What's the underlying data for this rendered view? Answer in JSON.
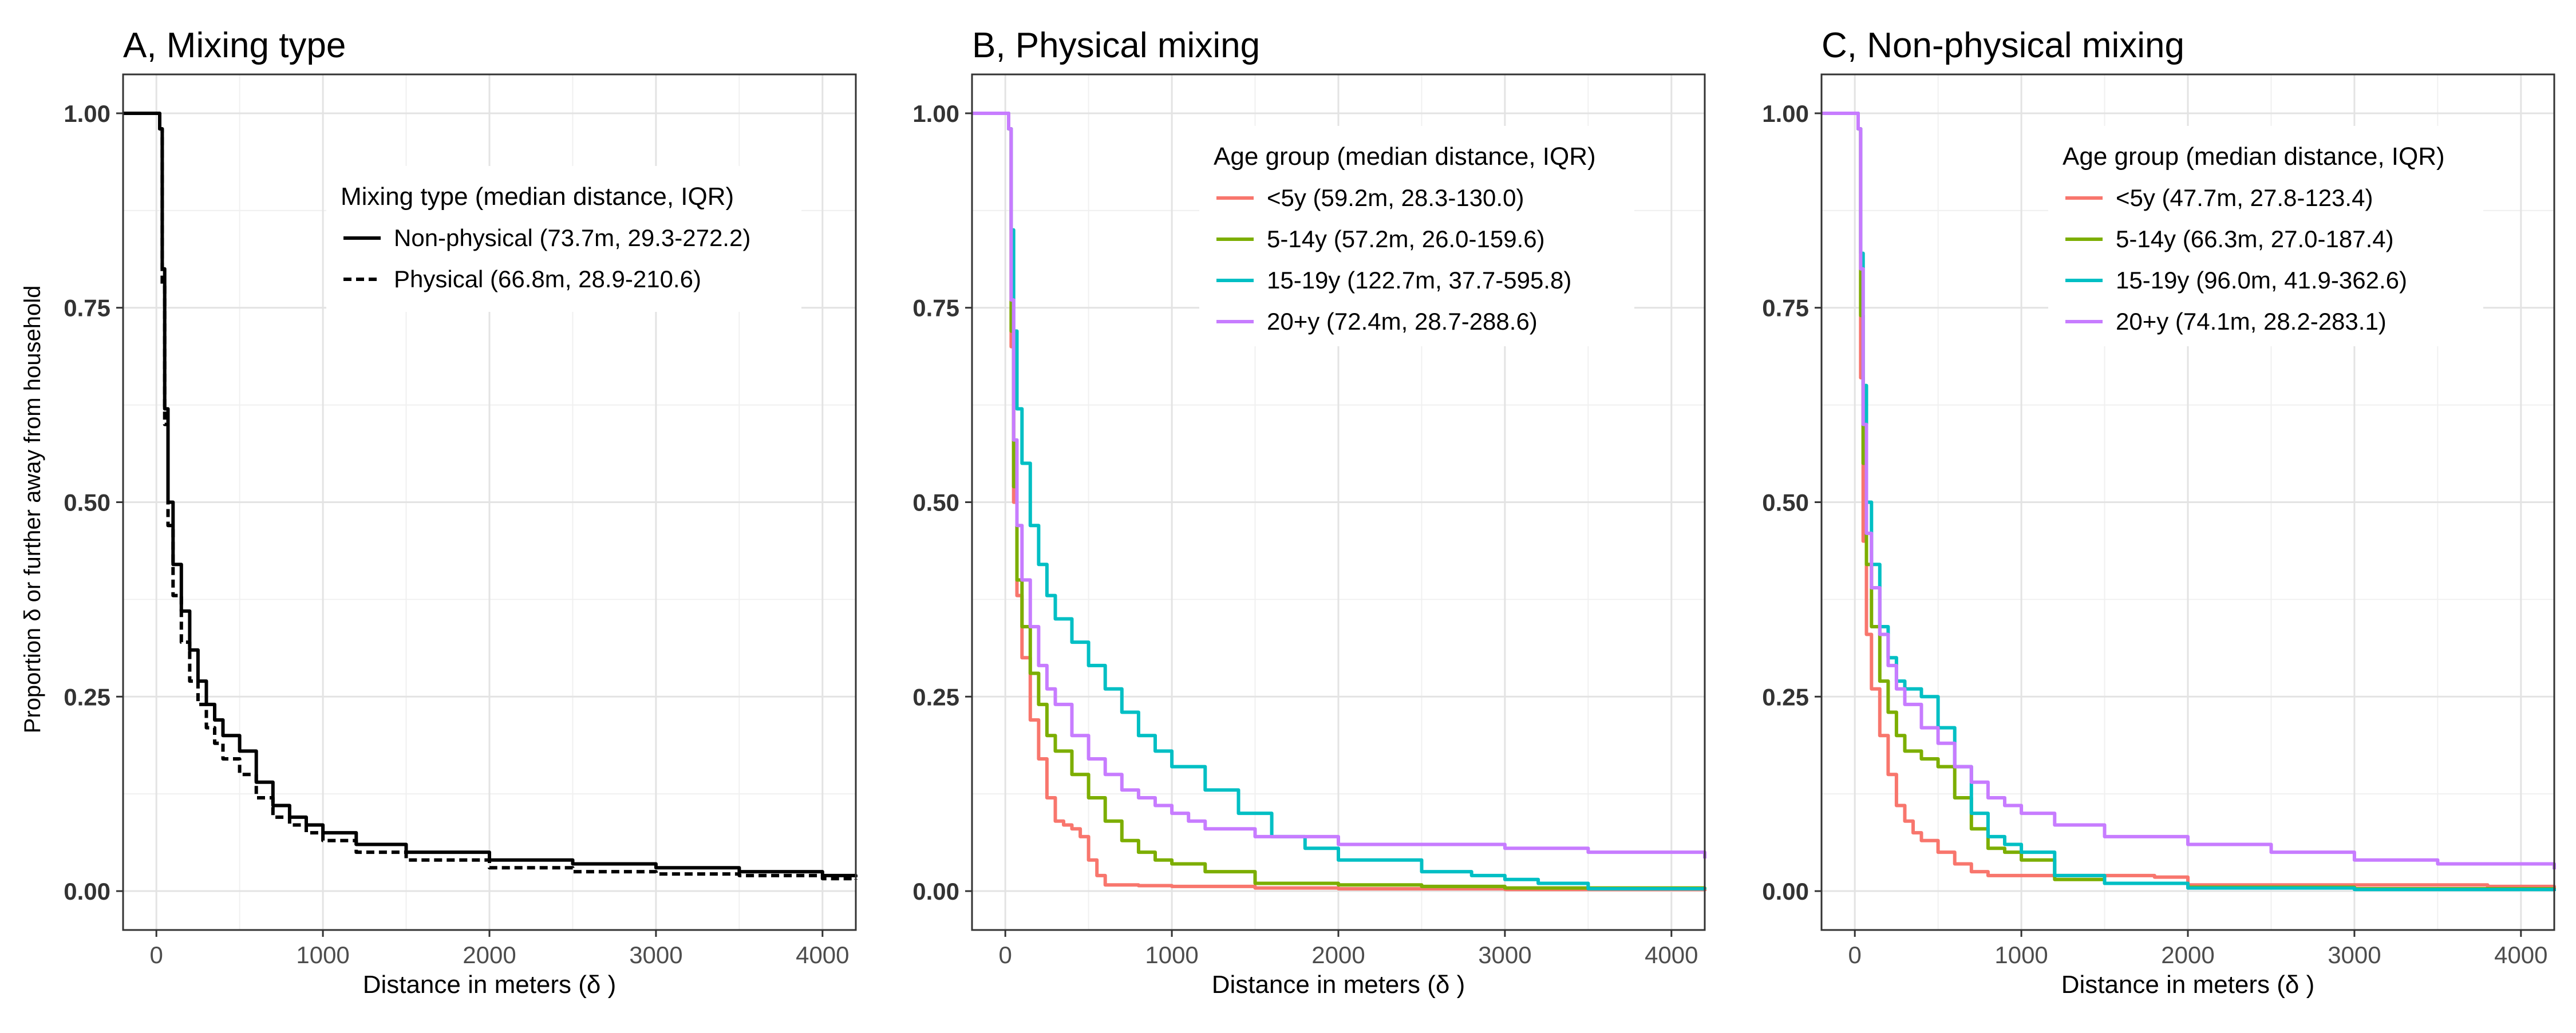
{
  "figure": {
    "ylabel": "Proportion δ  or further away from household"
  },
  "chart_data": [
    {
      "type": "line",
      "title": "A, Mixing type",
      "xlabel": "Distance in meters (δ )",
      "ylabel": "Proportion δ  or further away from household",
      "xlim": [
        -200,
        4200
      ],
      "ylim": [
        -0.05,
        1.05
      ],
      "x_ticks": [
        0,
        1000,
        2000,
        3000,
        4000
      ],
      "y_ticks": [
        0.0,
        0.25,
        0.5,
        0.75,
        1.0
      ],
      "y_tick_labels": [
        "0.00",
        "0.25",
        "0.50",
        "0.75",
        "1.00"
      ],
      "grid": true,
      "legend": {
        "title": "Mixing type (median distance, IQR)",
        "position": "top-right"
      },
      "series": [
        {
          "name": "Non-physical (73.7m, 29.3-272.2)",
          "color": "#000000",
          "dash": "solid",
          "x": [
            -200,
            0,
            20,
            35,
            50,
            70,
            100,
            150,
            200,
            250,
            300,
            350,
            400,
            500,
            600,
            700,
            800,
            900,
            1000,
            1200,
            1500,
            2000,
            2500,
            3000,
            3500,
            4000,
            4200
          ],
          "y": [
            1.0,
            1.0,
            0.98,
            0.8,
            0.62,
            0.5,
            0.42,
            0.36,
            0.31,
            0.27,
            0.24,
            0.22,
            0.2,
            0.18,
            0.14,
            0.11,
            0.095,
            0.085,
            0.075,
            0.06,
            0.05,
            0.04,
            0.035,
            0.03,
            0.025,
            0.02,
            0.018
          ]
        },
        {
          "name": "Physical (66.8m, 28.9-210.6)",
          "color": "#000000",
          "dash": "dashed",
          "x": [
            -200,
            0,
            20,
            35,
            50,
            70,
            100,
            150,
            200,
            250,
            300,
            350,
            400,
            500,
            600,
            700,
            800,
            900,
            1000,
            1200,
            1500,
            2000,
            2500,
            3000,
            3500,
            4000,
            4200
          ],
          "y": [
            1.0,
            1.0,
            0.98,
            0.78,
            0.6,
            0.47,
            0.38,
            0.32,
            0.27,
            0.24,
            0.21,
            0.19,
            0.17,
            0.15,
            0.12,
            0.095,
            0.085,
            0.075,
            0.065,
            0.05,
            0.04,
            0.03,
            0.025,
            0.022,
            0.02,
            0.016,
            0.015
          ]
        }
      ]
    },
    {
      "type": "line",
      "title": "B, Physical mixing",
      "xlabel": "Distance in meters (δ )",
      "xlim": [
        -200,
        4200
      ],
      "ylim": [
        -0.05,
        1.05
      ],
      "x_ticks": [
        0,
        1000,
        2000,
        3000,
        4000
      ],
      "y_ticks": [
        0.0,
        0.25,
        0.5,
        0.75,
        1.0
      ],
      "y_tick_labels": [
        "0.00",
        "0.25",
        "0.50",
        "0.75",
        "1.00"
      ],
      "grid": true,
      "legend": {
        "title": "Age group (median distance, IQR)",
        "position": "top-right"
      },
      "series": [
        {
          "name": "<5y (59.2m, 28.3-130.0)",
          "color": "#F8766D",
          "x": [
            -200,
            0,
            20,
            35,
            50,
            70,
            100,
            150,
            200,
            250,
            300,
            350,
            400,
            450,
            500,
            550,
            600,
            700,
            800,
            1000,
            1500,
            2000,
            3000,
            4200
          ],
          "y": [
            1.0,
            1.0,
            0.98,
            0.7,
            0.5,
            0.38,
            0.3,
            0.22,
            0.17,
            0.12,
            0.09,
            0.085,
            0.08,
            0.07,
            0.04,
            0.02,
            0.008,
            0.008,
            0.007,
            0.006,
            0.004,
            0.003,
            0.002,
            0.0
          ]
        },
        {
          "name": "5-14y (57.2m, 26.0-159.6)",
          "color": "#7CAE00",
          "x": [
            -200,
            0,
            20,
            35,
            50,
            70,
            100,
            150,
            200,
            250,
            300,
            400,
            500,
            600,
            700,
            800,
            900,
            1000,
            1200,
            1500,
            2000,
            2500,
            3000,
            4200
          ],
          "y": [
            1.0,
            1.0,
            0.98,
            0.72,
            0.52,
            0.4,
            0.34,
            0.28,
            0.24,
            0.2,
            0.18,
            0.15,
            0.12,
            0.09,
            0.065,
            0.05,
            0.04,
            0.035,
            0.025,
            0.01,
            0.008,
            0.006,
            0.004,
            0.002
          ]
        },
        {
          "name": "15-19y (122.7m, 37.7-595.8)",
          "color": "#00BFC4",
          "x": [
            -200,
            0,
            20,
            35,
            50,
            70,
            100,
            150,
            200,
            250,
            300,
            400,
            500,
            600,
            700,
            800,
            900,
            1000,
            1200,
            1400,
            1600,
            1800,
            2000,
            2500,
            2800,
            3000,
            3200,
            3500,
            4200
          ],
          "y": [
            1.0,
            1.0,
            0.98,
            0.85,
            0.72,
            0.62,
            0.55,
            0.47,
            0.42,
            0.38,
            0.35,
            0.32,
            0.29,
            0.26,
            0.23,
            0.2,
            0.18,
            0.16,
            0.13,
            0.1,
            0.07,
            0.055,
            0.04,
            0.025,
            0.02,
            0.015,
            0.01,
            0.003,
            0.002
          ]
        },
        {
          "name": "20+y (72.4m, 28.7-288.6)",
          "color": "#C77CFF",
          "x": [
            -200,
            0,
            20,
            35,
            50,
            70,
            100,
            150,
            200,
            250,
            300,
            400,
            500,
            600,
            700,
            800,
            900,
            1000,
            1100,
            1200,
            1500,
            2000,
            3000,
            3500,
            4200
          ],
          "y": [
            1.0,
            1.0,
            0.98,
            0.76,
            0.58,
            0.47,
            0.4,
            0.34,
            0.29,
            0.26,
            0.24,
            0.2,
            0.17,
            0.15,
            0.13,
            0.12,
            0.11,
            0.1,
            0.09,
            0.08,
            0.07,
            0.06,
            0.055,
            0.05,
            0.042
          ]
        }
      ]
    },
    {
      "type": "line",
      "title": "C, Non-physical mixing",
      "xlabel": "Distance in meters (δ )",
      "xlim": [
        -200,
        4200
      ],
      "ylim": [
        -0.05,
        1.05
      ],
      "x_ticks": [
        0,
        1000,
        2000,
        3000,
        4000
      ],
      "y_ticks": [
        0.0,
        0.25,
        0.5,
        0.75,
        1.0
      ],
      "y_tick_labels": [
        "0.00",
        "0.25",
        "0.50",
        "0.75",
        "1.00"
      ],
      "grid": true,
      "legend": {
        "title": "Age group (median distance, IQR)",
        "position": "top-right"
      },
      "series": [
        {
          "name": "<5y (47.7m, 27.8-123.4)",
          "color": "#F8766D",
          "x": [
            -200,
            0,
            20,
            35,
            50,
            70,
            100,
            150,
            200,
            250,
            300,
            350,
            400,
            500,
            600,
            700,
            800,
            1000,
            1200,
            1800,
            2000,
            3000,
            3800,
            4200
          ],
          "y": [
            1.0,
            1.0,
            0.98,
            0.66,
            0.45,
            0.33,
            0.26,
            0.2,
            0.15,
            0.11,
            0.09,
            0.075,
            0.065,
            0.05,
            0.035,
            0.025,
            0.02,
            0.02,
            0.02,
            0.018,
            0.008,
            0.008,
            0.006,
            0.0
          ]
        },
        {
          "name": "5-14y (66.3m, 27.0-187.4)",
          "color": "#7CAE00",
          "x": [
            -200,
            0,
            20,
            35,
            50,
            70,
            100,
            150,
            200,
            250,
            300,
            400,
            500,
            600,
            700,
            800,
            900,
            1000,
            1200,
            1500,
            2000,
            3000,
            4200
          ],
          "y": [
            1.0,
            1.0,
            0.98,
            0.74,
            0.55,
            0.42,
            0.34,
            0.27,
            0.23,
            0.2,
            0.18,
            0.17,
            0.16,
            0.12,
            0.08,
            0.055,
            0.05,
            0.04,
            0.015,
            0.01,
            0.005,
            0.003,
            0.001
          ]
        },
        {
          "name": "15-19y (96.0m, 41.9-362.6)",
          "color": "#00BFC4",
          "x": [
            -200,
            0,
            20,
            35,
            50,
            70,
            100,
            150,
            200,
            250,
            300,
            400,
            500,
            600,
            700,
            800,
            900,
            1000,
            1200,
            1500,
            2000,
            3000,
            4200
          ],
          "y": [
            1.0,
            1.0,
            0.98,
            0.82,
            0.65,
            0.5,
            0.42,
            0.34,
            0.3,
            0.27,
            0.26,
            0.25,
            0.21,
            0.16,
            0.1,
            0.07,
            0.06,
            0.05,
            0.02,
            0.01,
            0.004,
            0.002,
            0.0
          ]
        },
        {
          "name": "20+y (74.1m, 28.2-283.1)",
          "color": "#C77CFF",
          "x": [
            -200,
            0,
            20,
            35,
            50,
            70,
            100,
            150,
            200,
            250,
            300,
            400,
            500,
            600,
            700,
            800,
            900,
            1000,
            1200,
            1500,
            2000,
            2500,
            3000,
            3500,
            4200
          ],
          "y": [
            1.0,
            1.0,
            0.98,
            0.8,
            0.6,
            0.46,
            0.39,
            0.33,
            0.29,
            0.26,
            0.24,
            0.21,
            0.19,
            0.16,
            0.14,
            0.12,
            0.11,
            0.1,
            0.085,
            0.07,
            0.06,
            0.05,
            0.04,
            0.035,
            0.028
          ]
        }
      ]
    }
  ]
}
